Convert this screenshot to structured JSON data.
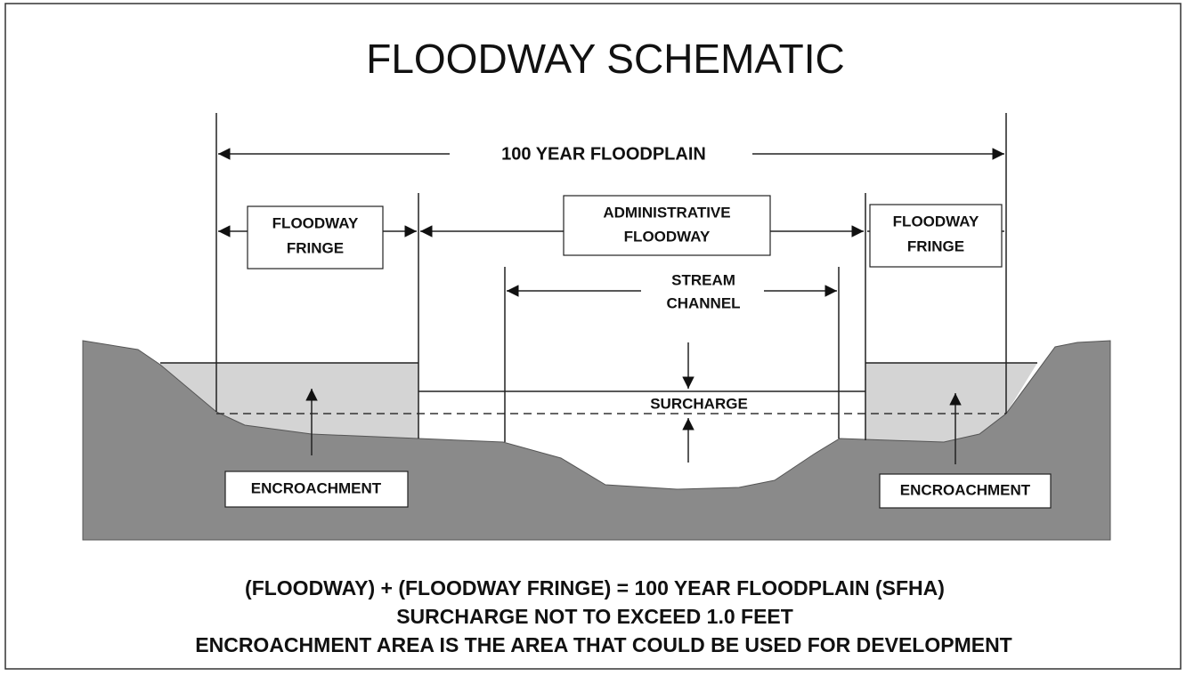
{
  "title": "FLOODWAY SCHEMATIC",
  "floodplain": {
    "label": "100 YEAR FLOODPLAIN"
  },
  "fringe_left": {
    "label": [
      "FLOODWAY",
      "FRINGE"
    ]
  },
  "administrative_floodway": {
    "label": [
      "ADMINISTRATIVE",
      "FLOODWAY"
    ]
  },
  "fringe_right": {
    "label": [
      "FLOODWAY",
      "FRINGE"
    ]
  },
  "stream_channel": {
    "label": [
      "STREAM",
      "CHANNEL"
    ]
  },
  "surcharge": {
    "label": "SURCHARGE"
  },
  "encroachment_left": {
    "label": "ENCROACHMENT"
  },
  "encroachment_right": {
    "label": "ENCROACHMENT"
  },
  "notes": [
    "(FLOODWAY) + (FLOODWAY FRINGE) = 100 YEAR FLOODPLAIN (SFHA)",
    "SURCHARGE NOT TO EXCEED 1.0 FEET",
    "ENCROACHMENT AREA IS THE AREA THAT COULD BE USED FOR DEVELOPMENT"
  ]
}
